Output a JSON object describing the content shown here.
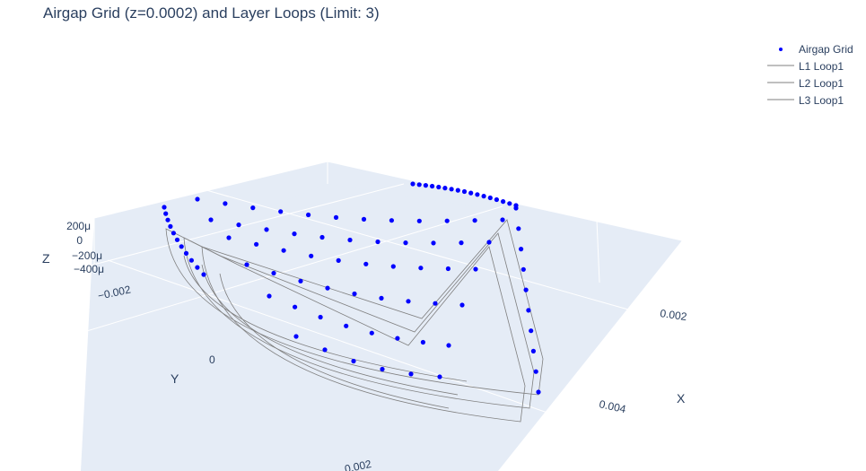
{
  "chart_data": {
    "type": "scatter3d",
    "title": "Airgap Grid (z=0.0002) and Layer Loops (Limit: 3)",
    "axes": {
      "x": {
        "label": "X",
        "ticks": [
          "0.002",
          "0.004"
        ]
      },
      "y": {
        "label": "Y",
        "ticks": [
          "−0.002",
          "0",
          "0.002"
        ]
      },
      "z": {
        "label": "Z",
        "ticks": [
          "200μ",
          "0",
          "−200μ",
          "−400μ"
        ]
      }
    },
    "legend": {
      "placement": "top-right",
      "entries": [
        "Airgap Grid",
        "L1 Loop1",
        "L2 Loop1",
        "L3 Loop1"
      ]
    },
    "series": [
      {
        "name": "Airgap Grid",
        "mode": "markers",
        "color": "#0000ff",
        "z": 0.0002
      },
      {
        "name": "L1 Loop1",
        "mode": "lines",
        "color": "#808080"
      },
      {
        "name": "L2 Loop1",
        "mode": "lines",
        "color": "#808080"
      },
      {
        "name": "L3 Loop1",
        "mode": "lines",
        "color": "#808080"
      }
    ],
    "background": "#e5ecf6",
    "grid": true
  }
}
